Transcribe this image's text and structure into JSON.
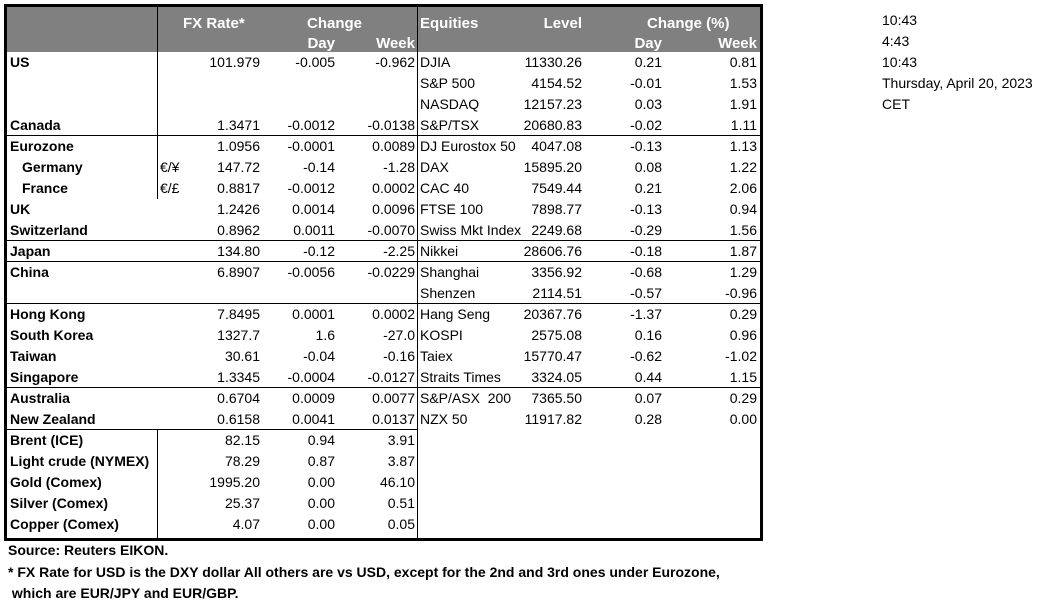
{
  "header": {
    "fx_rate": "FX Rate*",
    "change": "Change",
    "day": "Day",
    "week": "Week",
    "equities": "Equities",
    "level": "Level",
    "change_pct": "Change (%)",
    "eq_day": "Day",
    "eq_week": "Week"
  },
  "header_color": "#808080",
  "rows": [
    {
      "fx": {
        "name": "US",
        "rate": "101.979",
        "day": "-0.005",
        "week": "-0.962"
      },
      "eq": {
        "name": "DJIA",
        "level": "11330.26",
        "day": "0.21",
        "week": "0.81"
      }
    },
    {
      "eq": {
        "name": "S&P 500",
        "level": "4154.52",
        "day": "-0.01",
        "week": "1.53"
      }
    },
    {
      "eq": {
        "name": "NASDAQ",
        "level": "12157.23",
        "day": "0.03",
        "week": "1.91"
      }
    },
    {
      "fx": {
        "name": "Canada",
        "rate": "1.3471",
        "day": "-0.0012",
        "week": "-0.0138"
      },
      "eq": {
        "name": "S&P/TSX",
        "level": "20680.83",
        "day": "-0.02",
        "week": "1.11"
      }
    },
    {
      "fx": {
        "name": "Eurozone",
        "rate": "1.0956",
        "day": "-0.0001",
        "week": "0.0089"
      },
      "eq": {
        "name": "DJ Eurostox 50",
        "level": "4047.08",
        "day": "-0.13",
        "week": "1.13"
      }
    },
    {
      "fx": {
        "name": "Germany",
        "indent": true,
        "pair": "€/¥",
        "rate": "147.72",
        "day": "-0.14",
        "week": "-1.28"
      },
      "eq": {
        "name": "DAX",
        "level": "15895.20",
        "day": "0.08",
        "week": "1.22"
      }
    },
    {
      "fx": {
        "name": "France",
        "indent": true,
        "pair": "€/£",
        "rate": "0.8817",
        "day": "-0.0012",
        "week": "0.0002"
      },
      "eq": {
        "name": "CAC 40",
        "level": "7549.44",
        "day": "0.21",
        "week": "2.06"
      }
    },
    {
      "fx": {
        "name": "UK",
        "rate": "1.2426",
        "day": "0.0014",
        "week": "0.0096"
      },
      "eq": {
        "name": "FTSE 100",
        "level": "7898.77",
        "day": "-0.13",
        "week": "0.94"
      }
    },
    {
      "fx": {
        "name": "Switzerland",
        "rate": "0.8962",
        "day": "0.0011",
        "week": "-0.0070"
      },
      "eq": {
        "name": "Swiss Mkt Index",
        "level": "2249.68",
        "day": "-0.29",
        "week": "1.56"
      }
    },
    {
      "fx": {
        "name": "Japan",
        "rate": "134.80",
        "day": "-0.12",
        "week": "-2.25"
      },
      "eq": {
        "name": "Nikkei",
        "level": "28606.76",
        "day": "-0.18",
        "week": "1.87"
      }
    },
    {
      "fx": {
        "name": "China",
        "rate": "6.8907",
        "day": "-0.0056",
        "week": "-0.0229"
      },
      "eq": {
        "name": "Shanghai",
        "level": "3356.92",
        "day": "-0.68",
        "week": "1.29"
      }
    },
    {
      "eq": {
        "name": "Shenzen",
        "level": "2114.51",
        "day": "-0.57",
        "week": "-0.96"
      }
    },
    {
      "fx": {
        "name": "Hong Kong",
        "rate": "7.8495",
        "day": "0.0001",
        "week": "0.0002"
      },
      "eq": {
        "name": "Hang Seng",
        "level": "20367.76",
        "day": "-1.37",
        "week": "0.29"
      }
    },
    {
      "fx": {
        "name": "South Korea",
        "rate": "1327.7",
        "day": "1.6",
        "week": "-27.0"
      },
      "eq": {
        "name": "KOSPI",
        "level": "2575.08",
        "day": "0.16",
        "week": "0.96"
      }
    },
    {
      "fx": {
        "name": "Taiwan",
        "rate": "30.61",
        "day": "-0.04",
        "week": "-0.16"
      },
      "eq": {
        "name": "Taiex",
        "level": "15770.47",
        "day": "-0.62",
        "week": "-1.02"
      }
    },
    {
      "fx": {
        "name": "Singapore",
        "rate": "1.3345",
        "day": "-0.0004",
        "week": "-0.0127"
      },
      "eq": {
        "name": "Straits Times",
        "level": "3324.05",
        "day": "0.44",
        "week": "1.15"
      }
    },
    {
      "fx": {
        "name": "Australia",
        "rate": "0.6704",
        "day": "0.0009",
        "week": "0.0077"
      },
      "eq": {
        "name": "S&P/ASX  200",
        "level": "7365.50",
        "day": "0.07",
        "week": "0.29"
      }
    },
    {
      "fx": {
        "name": "New Zealand",
        "rate": "0.6158",
        "day": "0.0041",
        "week": "0.0137"
      },
      "eq": {
        "name": "NZX 50",
        "level": "11917.82",
        "day": "0.28",
        "week": "0.00"
      }
    },
    {
      "fx": {
        "name": "Brent (ICE)",
        "rate": "82.15",
        "day": "0.94",
        "week": "3.91"
      }
    },
    {
      "fx": {
        "name": "Light crude (NYMEX)",
        "rate": "78.29",
        "day": "0.87",
        "week": "3.87"
      }
    },
    {
      "fx": {
        "name": "Gold (Comex)",
        "rate": "1995.20",
        "day": "0.00",
        "week": "46.10"
      }
    },
    {
      "fx": {
        "name": "Silver (Comex)",
        "rate": "25.37",
        "day": "0.00",
        "week": "0.51"
      }
    },
    {
      "fx": {
        "name": "Copper (Comex)",
        "rate": "4.07",
        "day": "0.00",
        "week": "0.05"
      }
    }
  ],
  "side": [
    "10:43",
    "4:43",
    "10:43",
    "Thursday, April 20, 2023",
    "CET"
  ],
  "footer": {
    "source": "Source:  Reuters EIKON.",
    "note1": "* FX Rate for USD is the DXY dollar  All others are vs USD, except for the 2nd and 3rd ones under Eurozone,",
    "note2": " which are EUR/JPY and EUR/GBP."
  }
}
